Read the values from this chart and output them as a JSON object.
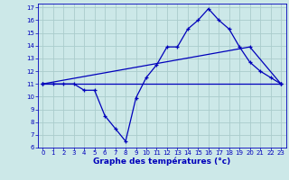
{
  "xlabel": "Graphe des températures (°c)",
  "bg_color": "#cce8e8",
  "line_color": "#0000bb",
  "grid_color": "#aacccc",
  "xlim": [
    -0.5,
    23.5
  ],
  "ylim": [
    6,
    17.3
  ],
  "xticks": [
    0,
    1,
    2,
    3,
    4,
    5,
    6,
    7,
    8,
    9,
    10,
    11,
    12,
    13,
    14,
    15,
    16,
    17,
    18,
    19,
    20,
    21,
    22,
    23
  ],
  "yticks": [
    6,
    7,
    8,
    9,
    10,
    11,
    12,
    13,
    14,
    15,
    16,
    17
  ],
  "series1_x": [
    0,
    1,
    2,
    3,
    4,
    5,
    6,
    7,
    8,
    9,
    10,
    11,
    12,
    13,
    14,
    15,
    16,
    17,
    18,
    19,
    20,
    21,
    22,
    23
  ],
  "series1_y": [
    11,
    11,
    11,
    11,
    10.5,
    10.5,
    8.5,
    7.5,
    6.5,
    9.9,
    11.5,
    12.5,
    13.9,
    13.9,
    15.3,
    16.0,
    16.9,
    16.0,
    15.3,
    13.9,
    12.7,
    12.0,
    11.5,
    11.0
  ],
  "series2_x": [
    0,
    20,
    23
  ],
  "series2_y": [
    11,
    13.9,
    11.0
  ],
  "series3_x": [
    0,
    23
  ],
  "series3_y": [
    11,
    11.0
  ],
  "tick_fontsize": 5,
  "xlabel_fontsize": 6.5,
  "lw": 0.9,
  "ms": 3.5
}
